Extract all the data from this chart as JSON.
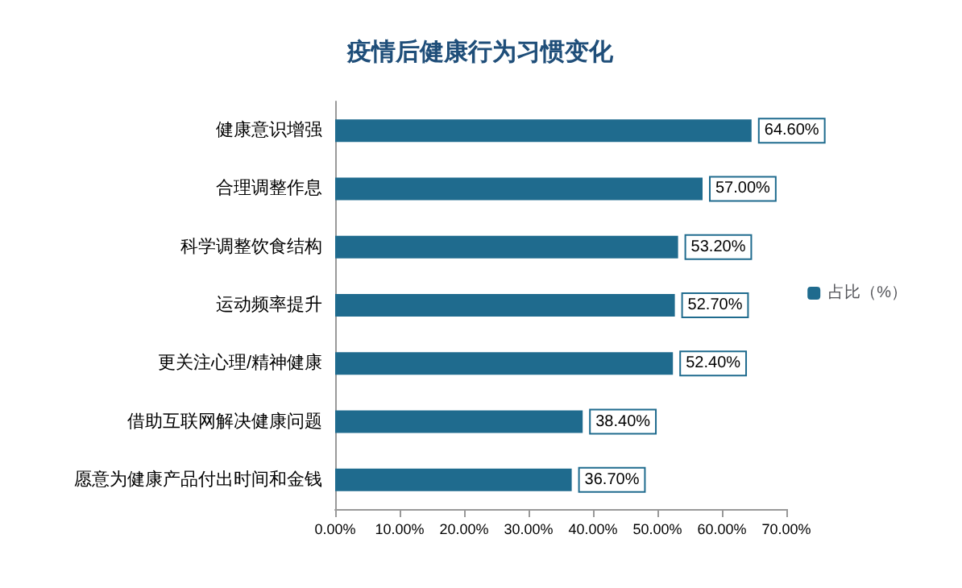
{
  "chart_data": {
    "type": "bar",
    "orientation": "horizontal",
    "title": "疫情后健康行为习惯变化",
    "categories": [
      "健康意识增强",
      "合理调整作息",
      "科学调整饮食结构",
      "运动频率提升",
      "更关注心理/精神健康",
      "借助互联网解决健康问题",
      "愿意为健康产品付出时间和金钱"
    ],
    "series": [
      {
        "name": "占比（%）",
        "color": "#1f6b8e",
        "values": [
          64.6,
          57.0,
          53.2,
          52.7,
          52.4,
          38.4,
          36.7
        ],
        "value_labels": [
          "64.60%",
          "57.00%",
          "53.20%",
          "52.70%",
          "52.40%",
          "38.40%",
          "36.70%"
        ]
      }
    ],
    "xlim": [
      0,
      70
    ],
    "xticks": [
      {
        "value": 0,
        "label": "0.00%"
      },
      {
        "value": 10,
        "label": "10.00%"
      },
      {
        "value": 20,
        "label": "20.00%"
      },
      {
        "value": 30,
        "label": "30.00%"
      },
      {
        "value": 40,
        "label": "40.00%"
      },
      {
        "value": 50,
        "label": "50.00%"
      },
      {
        "value": 60,
        "label": "60.00%"
      },
      {
        "value": 70,
        "label": "70.00%"
      }
    ],
    "grid": false,
    "legend": "right"
  }
}
